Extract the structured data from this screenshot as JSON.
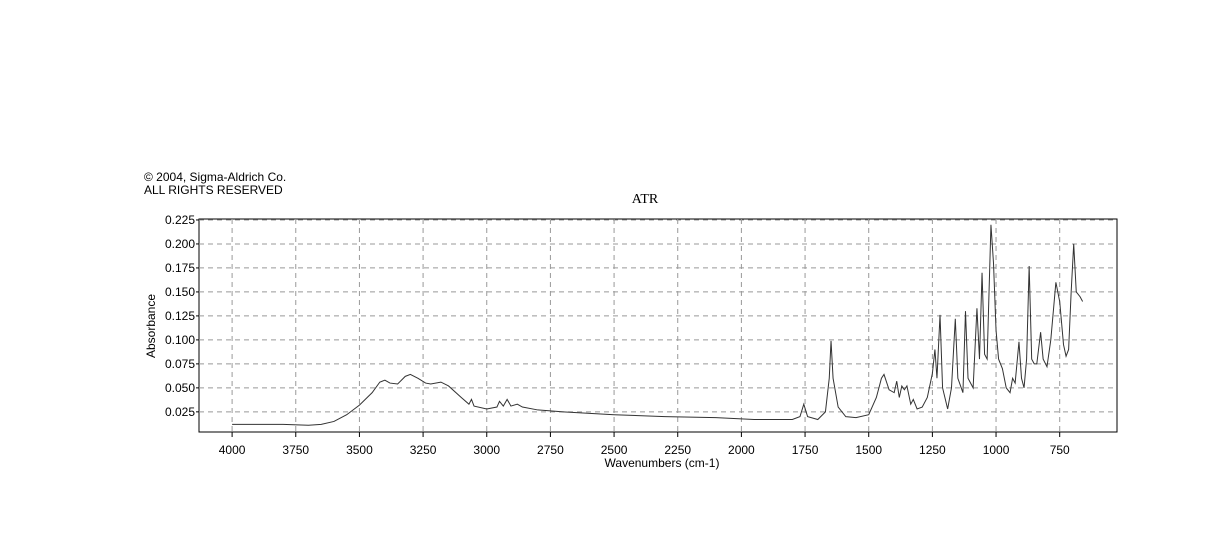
{
  "chart_data": {
    "type": "line",
    "title": "ATR",
    "annotations": [
      "© 2004, Sigma-Aldrich Co.",
      "ALL RIGHTS RESERVED"
    ],
    "x_label": "Wavenumbers (cm-1)",
    "y_label": "Absorbance",
    "x": [
      4000,
      3800,
      3700,
      3650,
      3600,
      3550,
      3500,
      3450,
      3420,
      3400,
      3380,
      3350,
      3320,
      3300,
      3270,
      3240,
      3220,
      3180,
      3150,
      3100,
      3070,
      3060,
      3050,
      3000,
      2960,
      2950,
      2935,
      2920,
      2905,
      2880,
      2860,
      2800,
      2700,
      2500,
      2300,
      2100,
      1950,
      1800,
      1770,
      1755,
      1740,
      1700,
      1670,
      1655,
      1648,
      1640,
      1620,
      1590,
      1550,
      1500,
      1470,
      1450,
      1440,
      1420,
      1400,
      1390,
      1380,
      1370,
      1360,
      1350,
      1335,
      1325,
      1310,
      1290,
      1270,
      1250,
      1240,
      1232,
      1220,
      1210,
      1190,
      1175,
      1160,
      1150,
      1130,
      1120,
      1110,
      1090,
      1075,
      1065,
      1055,
      1045,
      1035,
      1020,
      1010,
      1000,
      990,
      975,
      960,
      945,
      935,
      925,
      910,
      900,
      890,
      880,
      870,
      860,
      850,
      840,
      825,
      815,
      800,
      785,
      775,
      765,
      750,
      735,
      725,
      715,
      705,
      695,
      685,
      670,
      660
    ],
    "values": [
      0.012,
      0.012,
      0.011,
      0.012,
      0.015,
      0.022,
      0.032,
      0.045,
      0.056,
      0.058,
      0.055,
      0.054,
      0.062,
      0.064,
      0.06,
      0.055,
      0.054,
      0.056,
      0.052,
      0.04,
      0.033,
      0.038,
      0.031,
      0.028,
      0.03,
      0.036,
      0.031,
      0.038,
      0.031,
      0.033,
      0.03,
      0.027,
      0.025,
      0.022,
      0.02,
      0.019,
      0.017,
      0.017,
      0.02,
      0.033,
      0.02,
      0.017,
      0.025,
      0.06,
      0.099,
      0.06,
      0.03,
      0.02,
      0.019,
      0.022,
      0.04,
      0.06,
      0.064,
      0.048,
      0.045,
      0.057,
      0.04,
      0.052,
      0.048,
      0.052,
      0.033,
      0.038,
      0.028,
      0.03,
      0.04,
      0.065,
      0.09,
      0.06,
      0.126,
      0.05,
      0.028,
      0.05,
      0.122,
      0.06,
      0.045,
      0.13,
      0.06,
      0.05,
      0.133,
      0.08,
      0.17,
      0.085,
      0.08,
      0.22,
      0.18,
      0.11,
      0.08,
      0.07,
      0.05,
      0.045,
      0.06,
      0.055,
      0.098,
      0.06,
      0.05,
      0.08,
      0.177,
      0.08,
      0.075,
      0.075,
      0.108,
      0.08,
      0.072,
      0.1,
      0.13,
      0.16,
      0.14,
      0.095,
      0.083,
      0.09,
      0.15,
      0.2,
      0.15,
      0.145,
      0.14
    ],
    "color": "#333333",
    "xlim": [
      4130,
      525
    ],
    "ylim": [
      0.004,
      0.226
    ],
    "xticks": [
      4000,
      3750,
      3500,
      3250,
      3000,
      2750,
      2500,
      2250,
      2000,
      1750,
      1500,
      1250,
      1000,
      750
    ],
    "yticks": [
      0.025,
      {
        "value": 0.05,
        "label": "0.050"
      },
      0.075,
      {
        "value": 0.1,
        "label": "0.100"
      },
      0.125,
      {
        "value": 0.15,
        "label": "0.150"
      },
      0.175,
      {
        "value": 0.2,
        "label": "0.200"
      },
      0.225
    ],
    "grid": true
  }
}
